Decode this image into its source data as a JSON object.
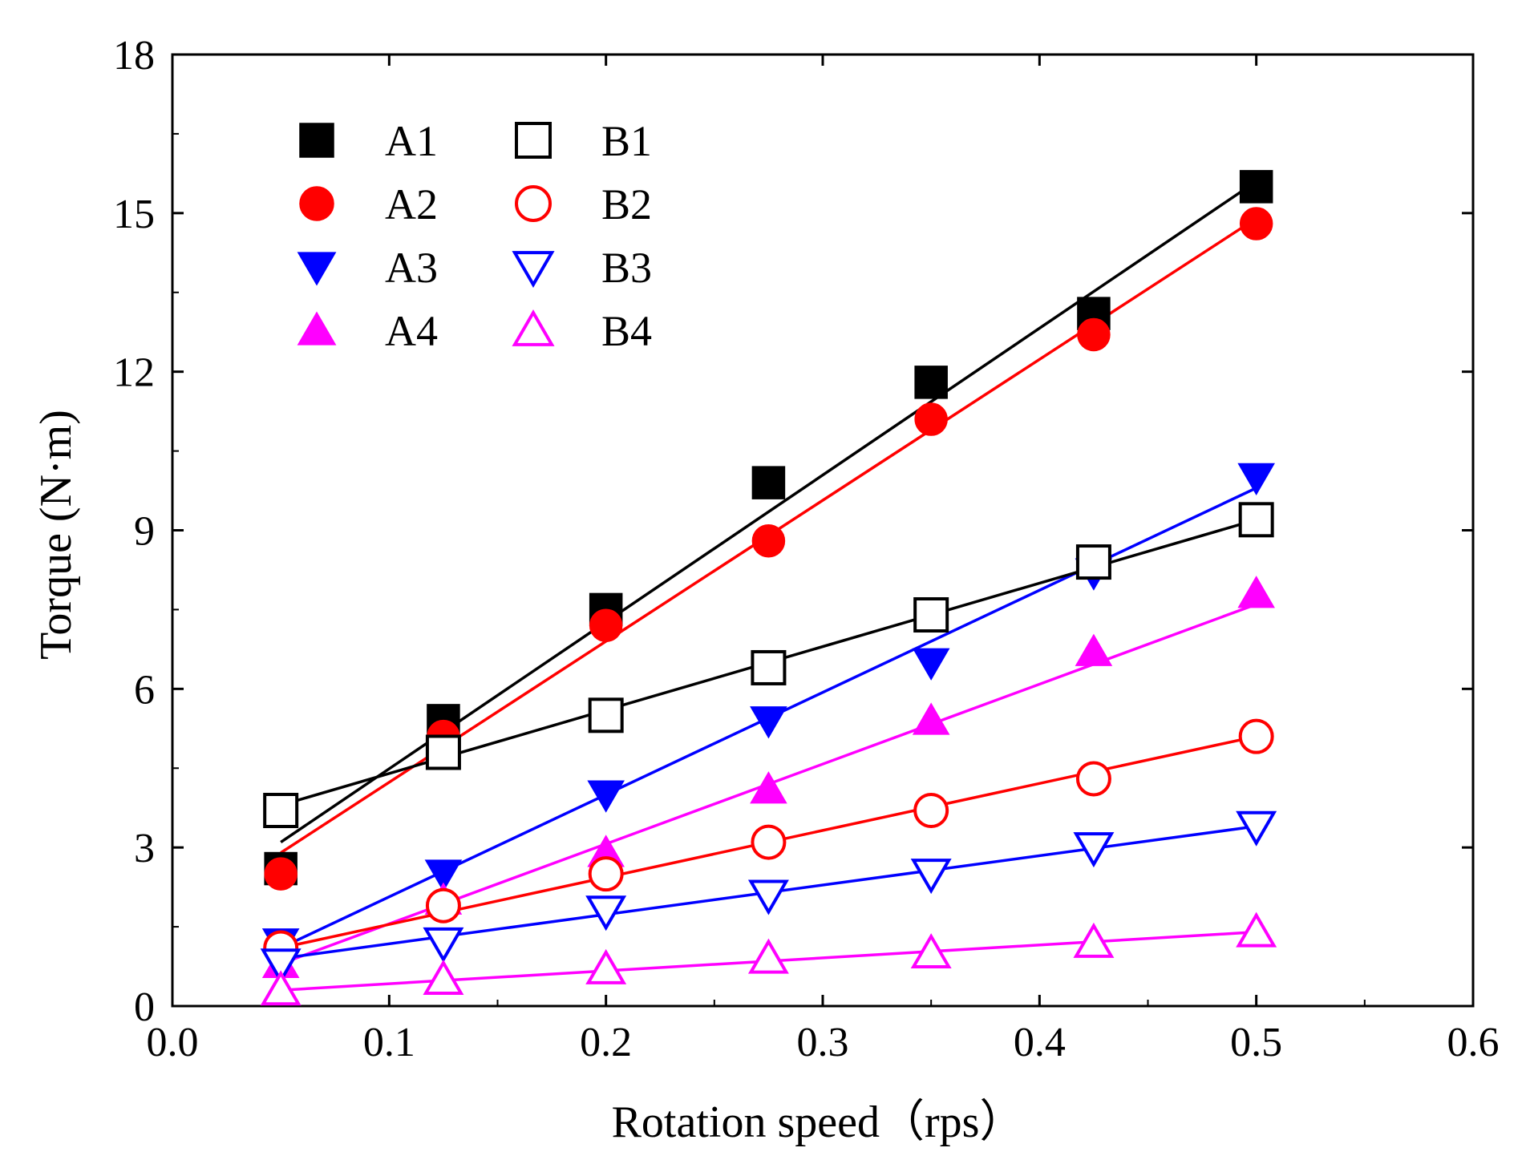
{
  "chart_data": {
    "type": "scatter",
    "title": "",
    "xlabel": "Rotation speed（rps）",
    "ylabel": "Torque (N·m)",
    "xlim": [
      0.0,
      0.6
    ],
    "ylim": [
      0,
      18
    ],
    "xticks": [
      0.0,
      0.1,
      0.2,
      0.3,
      0.4,
      0.5,
      0.6
    ],
    "xtick_labels": [
      "0.0",
      "0.1",
      "0.2",
      "0.3",
      "0.4",
      "0.5",
      "0.6"
    ],
    "yticks": [
      0,
      3,
      6,
      9,
      12,
      15,
      18
    ],
    "ytick_labels": [
      "0",
      "3",
      "6",
      "9",
      "12",
      "15",
      "18"
    ],
    "grid": false,
    "legend_position": "top-left",
    "x": [
      0.05,
      0.125,
      0.2,
      0.275,
      0.35,
      0.425,
      0.5
    ],
    "series": [
      {
        "name": "A1",
        "color": "#000000",
        "marker": "square",
        "filled": true,
        "values": [
          2.6,
          5.4,
          7.5,
          9.9,
          11.8,
          13.1,
          15.5
        ],
        "fit": [
          3.1,
          15.6
        ]
      },
      {
        "name": "A2",
        "color": "#ff0000",
        "marker": "circle",
        "filled": true,
        "values": [
          2.5,
          5.1,
          7.2,
          8.8,
          11.1,
          12.7,
          14.8
        ],
        "fit": [
          2.9,
          14.9
        ]
      },
      {
        "name": "A3",
        "color": "#0000ff",
        "marker": "triangle-down",
        "filled": true,
        "values": [
          1.2,
          2.5,
          4.0,
          5.4,
          6.5,
          8.2,
          10.0
        ],
        "fit": [
          1.1,
          9.8
        ]
      },
      {
        "name": "A4",
        "color": "#ff00ff",
        "marker": "triangle-up",
        "filled": true,
        "values": [
          0.8,
          2.0,
          2.9,
          4.1,
          5.4,
          6.7,
          7.8
        ],
        "fit": [
          0.8,
          7.6
        ]
      },
      {
        "name": "B1",
        "color": "#000000",
        "marker": "square",
        "filled": false,
        "values": [
          3.7,
          4.8,
          5.5,
          6.4,
          7.4,
          8.4,
          9.2
        ],
        "fit": [
          3.8,
          9.2
        ]
      },
      {
        "name": "B2",
        "color": "#ff0000",
        "marker": "circle",
        "filled": false,
        "values": [
          1.1,
          1.9,
          2.5,
          3.1,
          3.7,
          4.3,
          5.1
        ],
        "fit": [
          1.1,
          5.1
        ]
      },
      {
        "name": "B3",
        "color": "#0000ff",
        "marker": "triangle-down",
        "filled": false,
        "values": [
          0.8,
          1.2,
          1.8,
          2.1,
          2.5,
          3.0,
          3.4
        ],
        "fit": [
          0.9,
          3.4
        ]
      },
      {
        "name": "B4",
        "color": "#ff00ff",
        "marker": "triangle-up",
        "filled": false,
        "values": [
          0.3,
          0.5,
          0.7,
          0.9,
          1.0,
          1.2,
          1.4
        ],
        "fit": [
          0.3,
          1.4
        ]
      }
    ]
  }
}
